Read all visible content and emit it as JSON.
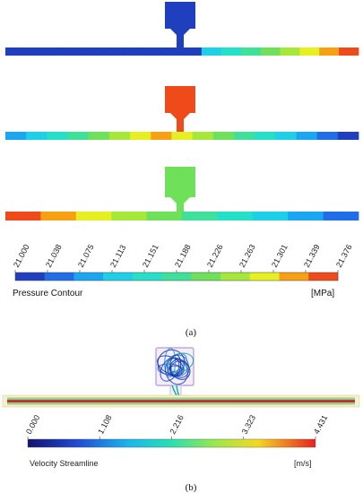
{
  "pressure": {
    "title": "Pressure Contour",
    "unit": "[MPa]",
    "ticks": [
      "21.000",
      "21.038",
      "21.075",
      "21.113",
      "21.151",
      "21.188",
      "21.226",
      "21.263",
      "21.301",
      "21.339",
      "21.376"
    ],
    "colormap": [
      "#1f3fbf",
      "#1f6ee8",
      "#1aa6f0",
      "#1dd0e8",
      "#24e0c8",
      "#3ee09a",
      "#6ee05a",
      "#a6e83a",
      "#e6f020",
      "#f7a014",
      "#ee4a1a"
    ],
    "panel_label": "(a)"
  },
  "pipes": [
    {
      "name": "pipe-1",
      "chamber_color": "#1f3fbf",
      "segments": [
        "#1f3fbf",
        "#1f3fbf",
        "#1f3fbf",
        "#1f3fbf",
        "#1f3fbf",
        "#1f3fbf",
        "#1f3fbf",
        "#1f3fbf",
        "#1f3fbf",
        "#1f3fbf",
        "#1dd0e8",
        "#24e0c8",
        "#3ee09a",
        "#6ee05a",
        "#a6e83a",
        "#e6f020",
        "#f7a014",
        "#ee4a1a"
      ]
    },
    {
      "name": "pipe-2",
      "chamber_color": "#ee4a1a",
      "segments": [
        "#1aa6f0",
        "#1dd0e8",
        "#24e0c8",
        "#3ee09a",
        "#6ee05a",
        "#a6e83a",
        "#e6f020",
        "#f7a014",
        "#e6f020",
        "#a6e83a",
        "#6ee05a",
        "#3ee09a",
        "#24e0c8",
        "#1dd0e8",
        "#1aa6f0",
        "#1f6ee8",
        "#1f3fbf"
      ]
    },
    {
      "name": "pipe-3",
      "chamber_color": "#6ee05a",
      "segments": [
        "#ee4a1a",
        "#f7a014",
        "#e6f020",
        "#a6e83a",
        "#6ee05a",
        "#3ee09a",
        "#24e0c8",
        "#1dd0e8",
        "#1aa6f0",
        "#1f6ee8"
      ]
    }
  ],
  "velocity": {
    "title": "Velocity Streamline",
    "unit": "[m/s]",
    "ticks": [
      "0.000",
      "1.108",
      "2.216",
      "3.323",
      "4.431"
    ],
    "panel_label": "(b)"
  }
}
